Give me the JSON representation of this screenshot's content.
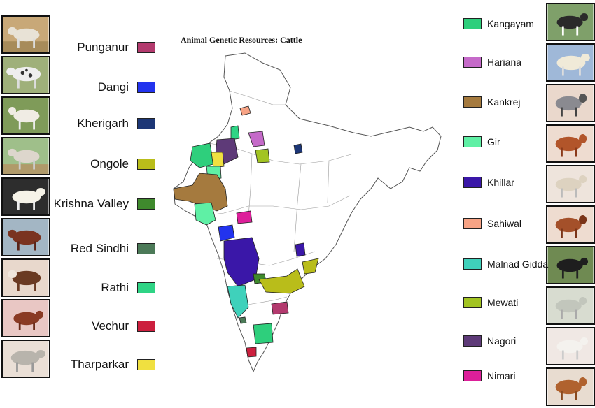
{
  "title": "Animal Genetic Resources: Cattle",
  "legend_left": [
    {
      "label": "Punganur",
      "color": "#b33a6e"
    },
    {
      "label": "Dangi",
      "color": "#2233ee"
    },
    {
      "label": "Kherigarh",
      "color": "#1c3676"
    },
    {
      "label": "Ongole",
      "color": "#b9bd1a"
    },
    {
      "label": "Krishna Valley",
      "color": "#3f8a2d"
    },
    {
      "label": "Red Sindhi",
      "color": "#4c7a58"
    },
    {
      "label": "Rathi",
      "color": "#2fd485"
    },
    {
      "label": "Vechur",
      "color": "#cc1f3e"
    },
    {
      "label": "Tharparkar",
      "color": "#f0e040"
    }
  ],
  "legend_right": [
    {
      "label": "Kangayam",
      "color": "#2ecf7c"
    },
    {
      "label": "Hariana",
      "color": "#c56ac9"
    },
    {
      "label": "Kankrej",
      "color": "#a57a3e"
    },
    {
      "label": "Gir",
      "color": "#5ff0a5"
    },
    {
      "label": "Khillar",
      "color": "#3a17a8"
    },
    {
      "label": "Sahiwal",
      "color": "#f7a385"
    },
    {
      "label": "Malnad Gidda",
      "color": "#3fd1bb"
    },
    {
      "label": "Mewati",
      "color": "#a2c422"
    },
    {
      "label": "Nagori",
      "color": "#5e3a78"
    },
    {
      "label": "Nimari",
      "color": "#dd1f9a"
    }
  ]
}
